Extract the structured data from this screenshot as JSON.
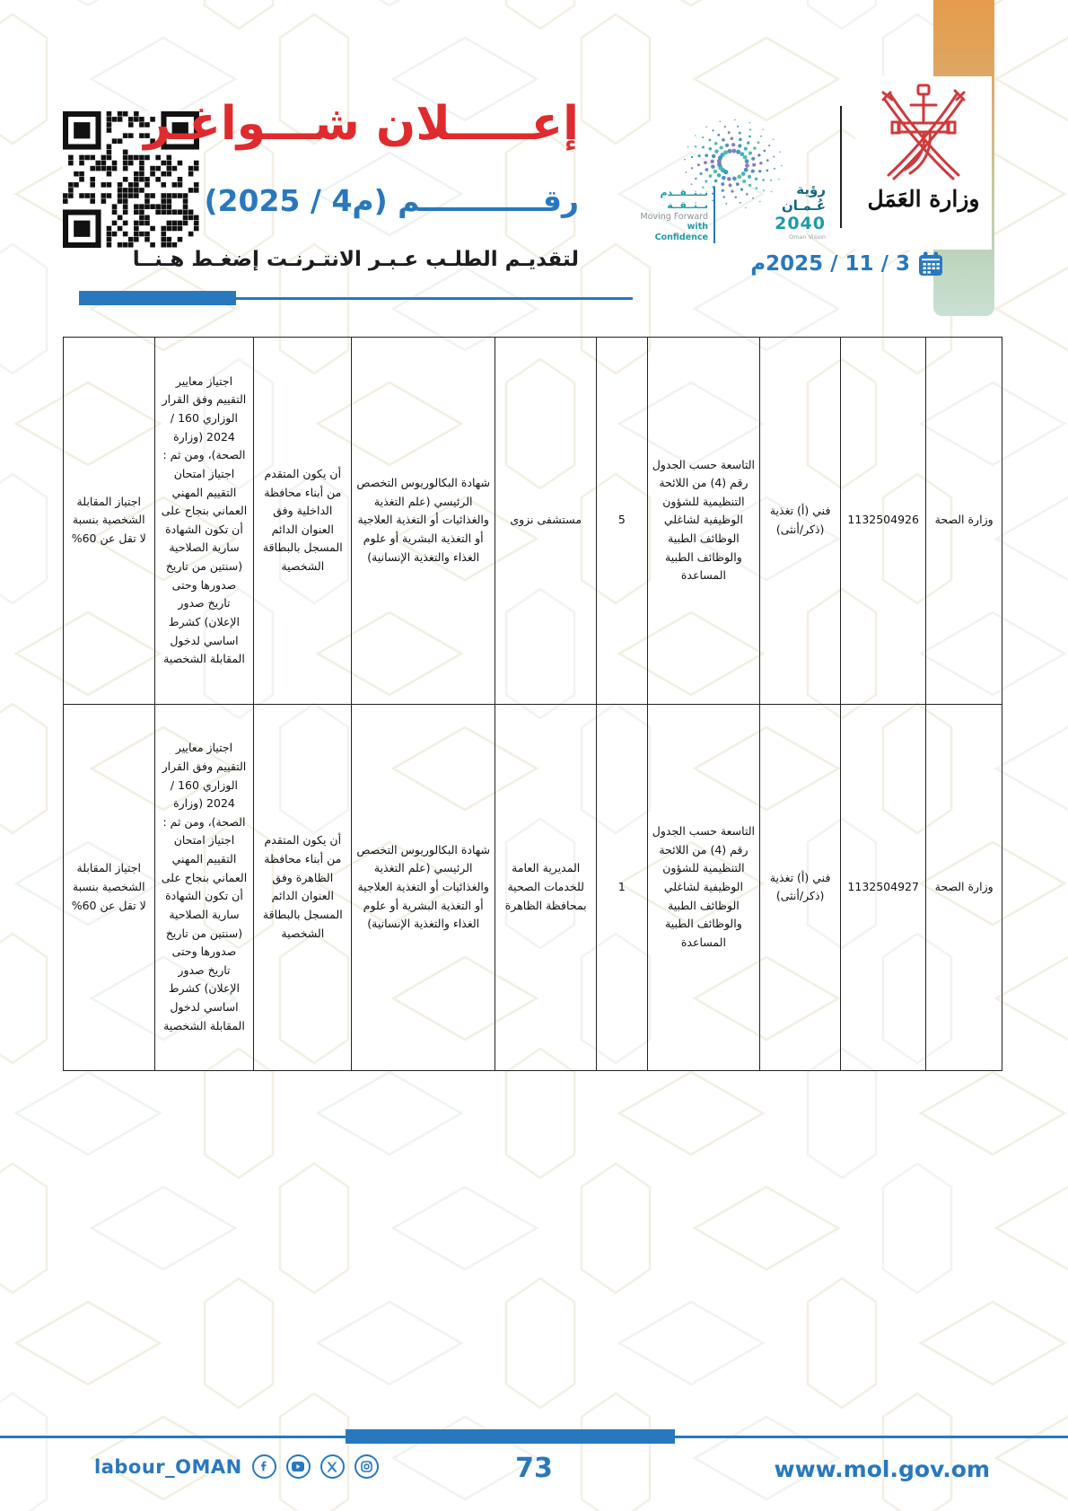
{
  "header": {
    "title": "إعـــــلان شـــواغـر",
    "number_line": "رقــــــــــــم (م4 / 2025)",
    "apply_line": "لتقديـم الطلـب عـبـر الانتـرنـت إضغـط هـنــا",
    "date": "3 / 11 / 2025م",
    "vision_logo": {
      "tagline_ar": "نــتــقــدم بــثــقــة",
      "tagline_en_1": "Moving Forward",
      "tagline_en_2": "with Confidence",
      "name_ar": "رؤية عُـمـان",
      "year": "2040",
      "caption": "Oman Vision"
    },
    "ministry_logo_text": "وزارة العَمَل"
  },
  "table": {
    "rows": [
      {
        "ministry": "وزارة الصحة",
        "job_number": "1132504926",
        "job_title": "فني (أ) تغذية (ذكر/أنثى)",
        "grade": "التاسعة حسب الجدول رقم (4) من اللائحة التنظيمية للشؤون الوظيفية لشاغلي الوظائف الطبية والوظائف الطبية المساعدة",
        "count": "5",
        "location": "مستشفى نزوى",
        "qualification": "شهادة البكالوريوس التخصص الرئيسي (علم التغذية والغذائيات أو التغذية العلاجية أو التغذية البشرية أو علوم الغذاء والتغذية الإنسانية)",
        "condition": "أن يكون المتقدم من أبناء محافظة الداخلية وفق العنوان الدائم المسجل بالبطاقة الشخصية",
        "criteria": "اجتياز معايير التقييم وفق القرار الوزاري 160 / 2024 (وزارة الصحة)، ومن ثم : اجتياز امتحان التقييم المهني العماني بنجاح على أن تكون الشهادة سارية الصلاحية (سنتين من تاريخ صدورها وحتى تاريخ صدور الإعلان) كشرط اساسي لدخول المقابلة الشخصية",
        "interview": "اجتياز المقابلة الشخصية بنسبة لا تقل عن 60%"
      },
      {
        "ministry": "وزارة الصحة",
        "job_number": "1132504927",
        "job_title": "فني (أ) تغذية (ذكر/أنثى)",
        "grade": "التاسعة حسب الجدول رقم (4) من اللائحة التنظيمية للشؤون الوظيفية لشاغلي الوظائف الطبية والوظائف الطبية المساعدة",
        "count": "1",
        "location": "المديرية العامة للخدمات الصحية بمحافظة الظاهرة",
        "qualification": "شهادة البكالوريوس التخصص الرئيسي (علم التغذية والغذائيات أو التغذية العلاجية أو التغذية البشرية أو علوم الغذاء والتغذية الإنسانية)",
        "condition": "أن يكون المتقدم من أبناء محافظة الظاهرة وفق العنوان الدائم المسجل بالبطاقة الشخصية",
        "criteria": "اجتياز معايير التقييم وفق القرار الوزاري 160 / 2024 (وزارة الصحة)، ومن ثم : اجتياز امتحان التقييم المهني العماني بنجاح على أن تكون الشهادة سارية الصلاحية (سنتين من تاريخ صدورها وحتى تاريخ صدور الإعلان) كشرط اساسي لدخول المقابلة الشخصية",
        "interview": "اجتياز المقابلة الشخصية بنسبة لا تقل عن 60%"
      }
    ]
  },
  "footer": {
    "social_handle": "labour_OMAN",
    "page_number": "73",
    "website": "www.mol.gov.om"
  },
  "icons": [
    "qr-code",
    "calendar-icon",
    "facebook-icon",
    "youtube-icon",
    "x-icon",
    "instagram-icon"
  ],
  "colors": {
    "accent_blue": "#2878be",
    "title_red": "#df2b2e",
    "band_orange": "#e59c4b",
    "band_green": "#c9e0d4",
    "emblem_red": "#cf3a3c",
    "vision_teal": "#1f9aa8"
  }
}
